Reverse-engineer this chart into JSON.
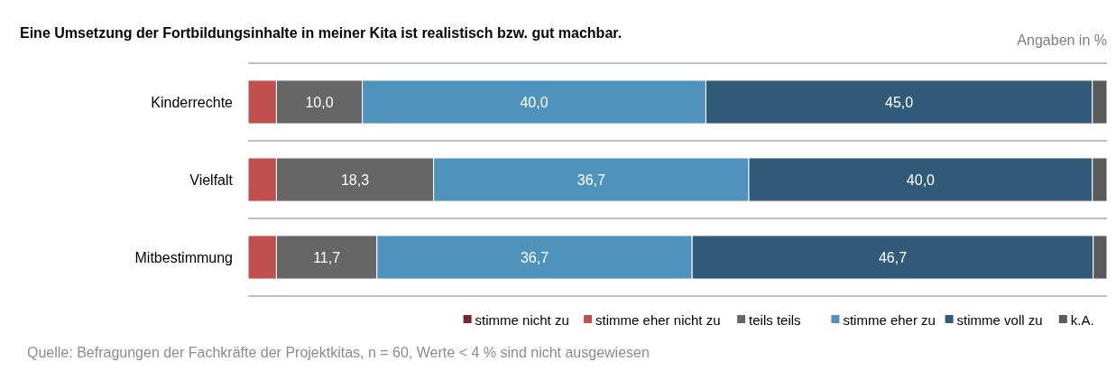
{
  "chart_data": {
    "type": "bar",
    "orientation": "horizontal",
    "stacked": true,
    "title": "Eine Umsetzung der Fortbildungsinhalte in meiner Kita ist realistisch bzw. gut machbar.",
    "categories": [
      "Kinderrechte",
      "Vielfalt",
      "Mitbestimmung"
    ],
    "xlim": [
      0,
      100
    ],
    "tick_labels": "y",
    "legend": "bottom right",
    "series": [
      {
        "name": "stimme nicht zu",
        "color": "#7b2331",
        "values": [
          0,
          0,
          0
        ]
      },
      {
        "name": "stimme eher nicht zu",
        "color": "#c0504d",
        "values": [
          3.3,
          3.3,
          3.3
        ]
      },
      {
        "name": "teils teils",
        "color": "#666666",
        "values": [
          10.0,
          18.3,
          11.7
        ],
        "value_labels": [
          "10,0",
          "18,3",
          "11,7"
        ]
      },
      {
        "name": "stimme eher zu",
        "color": "#4f93bd",
        "values": [
          40.0,
          36.7,
          36.7
        ],
        "value_labels": [
          "40,0",
          "36,7",
          "36,7"
        ]
      },
      {
        "name": "stimme voll zu",
        "color": "#315a78",
        "values": [
          45.0,
          40.0,
          46.7
        ],
        "value_labels": [
          "45,0",
          "40,0",
          "46,7"
        ]
      },
      {
        "name": "k.A.",
        "color": "#5a5a5a",
        "values": [
          1.7,
          1.7,
          1.6
        ]
      }
    ],
    "annotations": [
      "Angaben in %",
      "Quelle: Befragungen der Fachkräfte der Projektkitas, n = 60, Werte < 4 % sind nicht ausgewiesen"
    ]
  }
}
